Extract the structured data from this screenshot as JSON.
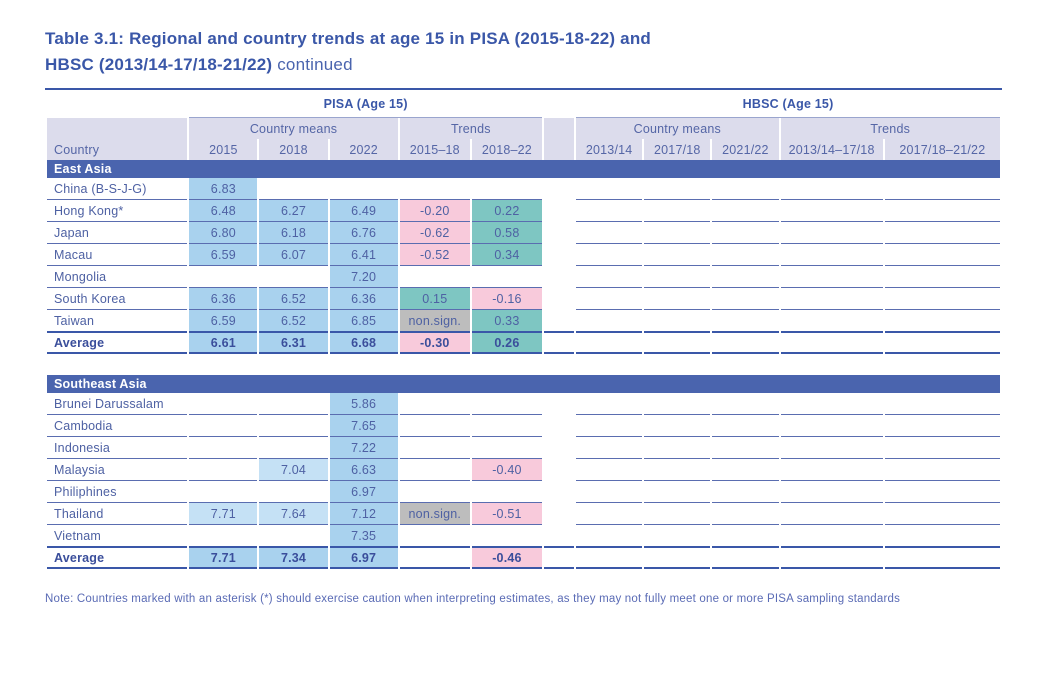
{
  "page": {
    "title_line1": "Table 3.1: Regional and country trends at age 15 in PISA (2015-18-22) and",
    "title_line2_bold": "HBSC (2013/14-17/18-21/22)",
    "title_line2_regular": "continued",
    "note": "Note: Countries marked with an asterisk (*) should exercise caution when interpreting estimates, as they may not fully meet one or more PISA sampling standards"
  },
  "colors": {
    "accent_blue": "#3A57A8",
    "section_bar_blue": "#4A64AE",
    "band_lavender": "#DCDCEC",
    "highlight_blue": "#A9D2EE",
    "highlight_lightblue": "#C5E1F5",
    "highlight_pink": "#F8CADB",
    "highlight_teal": "#7EC6C2",
    "highlight_gray": "#BDBDBD"
  },
  "table": {
    "group_headers": {
      "pisa": "PISA (Age 15)",
      "hbsc": "HBSC (Age 15)"
    },
    "band": {
      "country_means": "Country means",
      "trends": "Trends"
    },
    "columns": {
      "country": "Country",
      "pisa_years": [
        "2015",
        "2018",
        "2022"
      ],
      "pisa_trends": [
        "2015–18",
        "2018–22"
      ],
      "hbsc_years": [
        "2013/14",
        "2017/18",
        "2021/22"
      ],
      "hbsc_trends": [
        "2013/14–17/18",
        "2017/18–21/22"
      ]
    },
    "sections": [
      {
        "name": "East Asia",
        "rows": [
          {
            "country": "China (B-S-J-G)",
            "pisa": [
              {
                "v": "6.83",
                "hl": "blue"
              },
              {},
              {},
              {},
              {}
            ]
          },
          {
            "country": "Hong Kong*",
            "pisa": [
              {
                "v": "6.48",
                "hl": "blue"
              },
              {
                "v": "6.27",
                "hl": "blue"
              },
              {
                "v": "6.49",
                "hl": "blue"
              },
              {
                "v": "-0.20",
                "hl": "pink"
              },
              {
                "v": "0.22",
                "hl": "teal"
              }
            ]
          },
          {
            "country": "Japan",
            "pisa": [
              {
                "v": "6.80",
                "hl": "blue"
              },
              {
                "v": "6.18",
                "hl": "blue"
              },
              {
                "v": "6.76",
                "hl": "blue"
              },
              {
                "v": "-0.62",
                "hl": "pink"
              },
              {
                "v": "0.58",
                "hl": "teal"
              }
            ]
          },
          {
            "country": "Macau",
            "pisa": [
              {
                "v": "6.59",
                "hl": "blue"
              },
              {
                "v": "6.07",
                "hl": "blue"
              },
              {
                "v": "6.41",
                "hl": "blue"
              },
              {
                "v": "-0.52",
                "hl": "pink"
              },
              {
                "v": "0.34",
                "hl": "teal"
              }
            ]
          },
          {
            "country": "Mongolia",
            "pisa": [
              {},
              {},
              {
                "v": "7.20",
                "hl": "blue"
              },
              {},
              {}
            ]
          },
          {
            "country": "South Korea",
            "pisa": [
              {
                "v": "6.36",
                "hl": "blue"
              },
              {
                "v": "6.52",
                "hl": "blue"
              },
              {
                "v": "6.36",
                "hl": "blue"
              },
              {
                "v": "0.15",
                "hl": "teal"
              },
              {
                "v": "-0.16",
                "hl": "pink"
              }
            ]
          },
          {
            "country": "Taiwan",
            "pisa": [
              {
                "v": "6.59",
                "hl": "blue"
              },
              {
                "v": "6.52",
                "hl": "blue"
              },
              {
                "v": "6.85",
                "hl": "blue"
              },
              {
                "v": "non.sign.",
                "hl": "gray"
              },
              {
                "v": "0.33",
                "hl": "teal"
              }
            ]
          }
        ],
        "average": {
          "label": "Average",
          "pisa": [
            {
              "v": "6.61",
              "hl": "blue"
            },
            {
              "v": "6.31",
              "hl": "blue"
            },
            {
              "v": "6.68",
              "hl": "blue"
            },
            {
              "v": "-0.30",
              "hl": "pink"
            },
            {
              "v": "0.26",
              "hl": "teal"
            }
          ]
        }
      },
      {
        "name": "Southeast Asia",
        "rows": [
          {
            "country": "Brunei Darussalam",
            "pisa": [
              {},
              {},
              {
                "v": "5.86",
                "hl": "blue"
              },
              {},
              {}
            ]
          },
          {
            "country": "Cambodia",
            "pisa": [
              {},
              {},
              {
                "v": "7.65",
                "hl": "blue"
              },
              {},
              {}
            ]
          },
          {
            "country": "Indonesia",
            "pisa": [
              {},
              {},
              {
                "v": "7.22",
                "hl": "blue"
              },
              {},
              {}
            ]
          },
          {
            "country": "Malaysia",
            "pisa": [
              {},
              {
                "v": "7.04",
                "hl": "lightblue"
              },
              {
                "v": "6.63",
                "hl": "blue"
              },
              {},
              {
                "v": "-0.40",
                "hl": "pink"
              }
            ]
          },
          {
            "country": "Philiphines",
            "pisa": [
              {},
              {},
              {
                "v": "6.97",
                "hl": "blue"
              },
              {},
              {}
            ]
          },
          {
            "country": "Thailand",
            "pisa": [
              {
                "v": "7.71",
                "hl": "lightblue"
              },
              {
                "v": "7.64",
                "hl": "lightblue"
              },
              {
                "v": "7.12",
                "hl": "blue"
              },
              {
                "v": "non.sign.",
                "hl": "gray"
              },
              {
                "v": "-0.51",
                "hl": "pink"
              }
            ]
          },
          {
            "country": "Vietnam",
            "pisa": [
              {},
              {},
              {
                "v": "7.35",
                "hl": "blue"
              },
              {},
              {}
            ]
          }
        ],
        "average": {
          "label": "Average",
          "pisa": [
            {
              "v": "7.71",
              "hl": "blue"
            },
            {
              "v": "7.34",
              "hl": "blue"
            },
            {
              "v": "6.97",
              "hl": "blue"
            },
            {},
            {
              "v": "-0.46",
              "hl": "pink"
            }
          ]
        }
      }
    ]
  }
}
